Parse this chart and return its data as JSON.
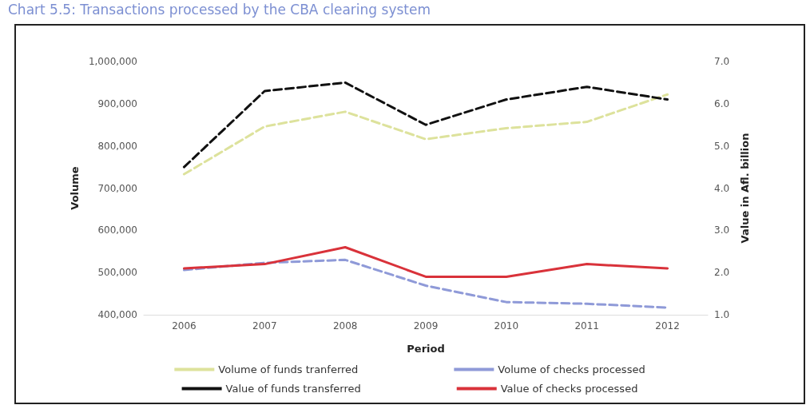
{
  "chart_data": {
    "type": "line",
    "title": "Chart 5.5: Transactions processed by the CBA clearing system",
    "xlabel": "Period",
    "ylabel": "Volume",
    "y2label": "Value in Afl. billion",
    "categories": [
      "2006",
      "2007",
      "2008",
      "2009",
      "2010",
      "2011",
      "2012"
    ],
    "series": [
      {
        "name": "Volume of funds tranferred",
        "color": "#dde29c",
        "line_style": "dashed",
        "values": [
          733000,
          846000,
          881000,
          816000,
          842000,
          857000,
          922000
        ]
      },
      {
        "name": "Volume of checks processed",
        "color": "#8f9ad8",
        "line_style": "dashed",
        "values": [
          506000,
          523000,
          530000,
          469000,
          430000,
          426000,
          417000
        ]
      },
      {
        "name": "Value of funds transferred",
        "color": "#111111",
        "line_style": "dashed",
        "axis": "y2",
        "values": [
          4.5,
          6.3,
          6.5,
          5.5,
          6.1,
          6.4,
          6.1
        ]
      },
      {
        "name": "Value of checks processed",
        "color": "#d9323a",
        "line_style": "solid",
        "axis": "y2",
        "values": [
          2.1,
          2.2,
          2.6,
          1.9,
          1.9,
          2.2,
          2.1
        ]
      }
    ],
    "ylim": [
      400000,
      1000000
    ],
    "yticks": [
      {
        "value": 400000,
        "label": "400,000"
      },
      {
        "value": 500000,
        "label": "500,000"
      },
      {
        "value": 600000,
        "label": "600,000"
      },
      {
        "value": 700000,
        "label": "700,000"
      },
      {
        "value": 800000,
        "label": "800,000"
      },
      {
        "value": 900000,
        "label": "900,000"
      },
      {
        "value": 1000000,
        "label": "1,000,000"
      }
    ],
    "y2lim": [
      1,
      7
    ],
    "y2ticks": [
      {
        "value": 1,
        "label": "1.0"
      },
      {
        "value": 2,
        "label": "2.0"
      },
      {
        "value": 3,
        "label": "3.0"
      },
      {
        "value": 4,
        "label": "4.0"
      },
      {
        "value": 5,
        "label": "5.0"
      },
      {
        "value": 6,
        "label": "6.0"
      },
      {
        "value": 7,
        "label": "7.0"
      }
    ],
    "grid": false,
    "legend": "bottom",
    "marker": "none"
  }
}
